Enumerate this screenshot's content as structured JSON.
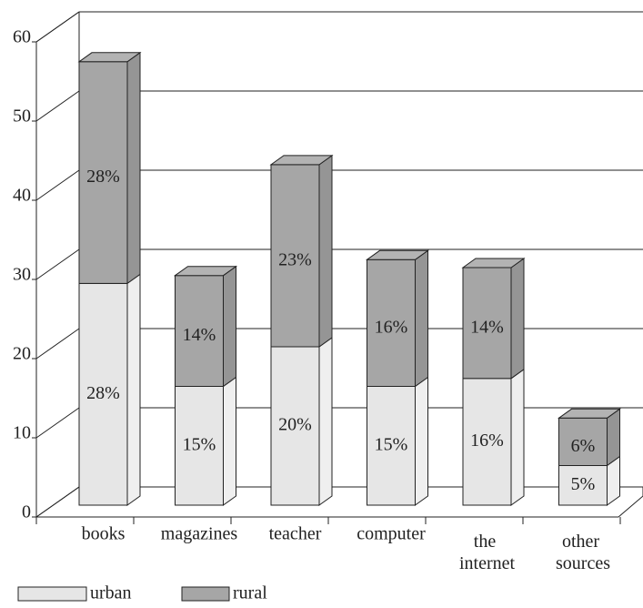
{
  "chart_data": {
    "type": "bar",
    "stacked": true,
    "three_d": true,
    "categories": [
      "books",
      "magazines",
      "teacher",
      "computer",
      "the internet",
      "other sources"
    ],
    "series": [
      {
        "name": "urban",
        "color": "#e6e6e6",
        "values": [
          28,
          15,
          20,
          15,
          16,
          5
        ],
        "value_labels": [
          "28%",
          "15%",
          "20%",
          "15%",
          "16%",
          "5%"
        ]
      },
      {
        "name": "rural",
        "color": "#a6a6a6",
        "values": [
          28,
          14,
          23,
          16,
          14,
          6
        ],
        "value_labels": [
          "28%",
          "14%",
          "23%",
          "16%",
          "14%",
          "6%"
        ]
      }
    ],
    "ylim": [
      0,
      60
    ],
    "yticks": [
      0,
      10,
      20,
      30,
      40,
      50,
      60
    ],
    "grid": true,
    "legend": "bottom-left"
  }
}
